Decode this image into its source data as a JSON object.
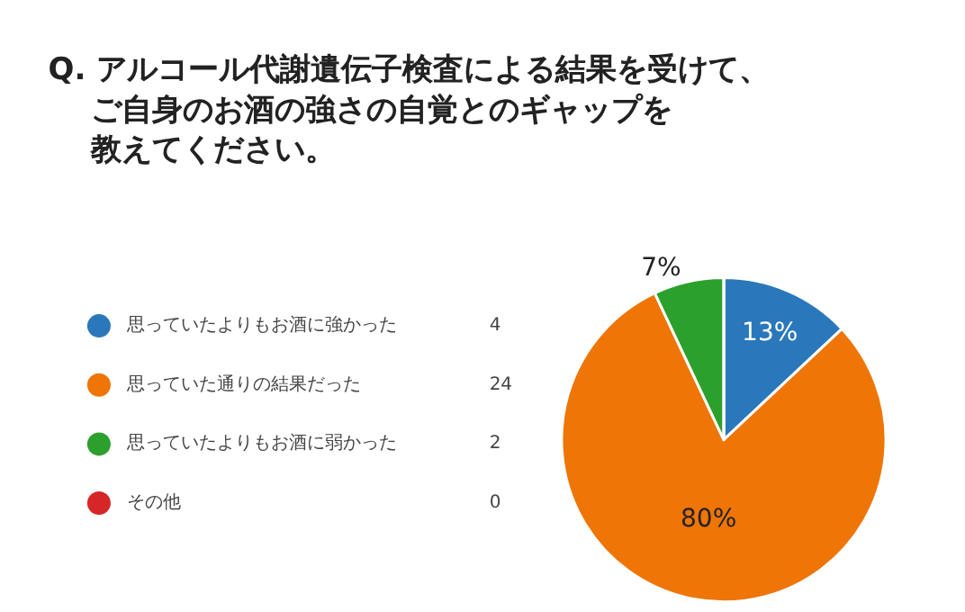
{
  "chart_data": {
    "type": "pie",
    "title": "Q. アルコール代謝遺伝子検査による結果を受けて、ご自身のお酒の強さの自覚とのギャップを教えてください。",
    "categories": [
      "思っていたよりもお酒に強かった",
      "思っていた通りの結果だった",
      "思っていたよりもお酒に弱かった",
      "その他"
    ],
    "values": [
      13,
      80,
      7,
      0
    ],
    "value_labels": [
      "13%",
      "80%",
      "7%",
      null
    ],
    "colors": [
      "#2a78bb",
      "#ee7506",
      "#2ca02c",
      "#d62728"
    ],
    "annotations": [
      "4",
      "24",
      "2",
      "0"
    ],
    "legend": "left"
  }
}
